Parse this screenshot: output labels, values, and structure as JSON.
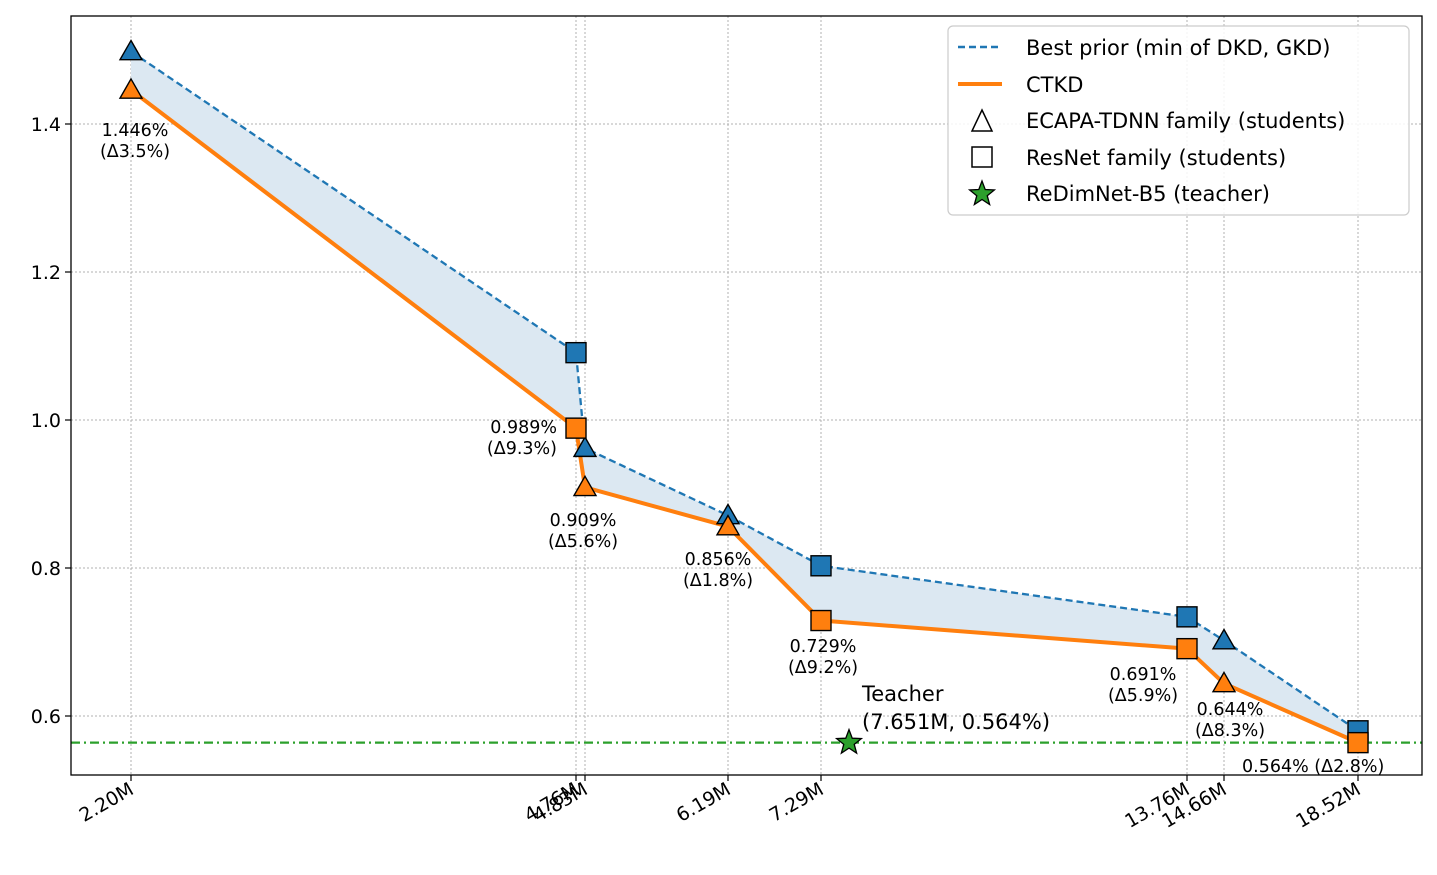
{
  "chart_data": {
    "type": "line",
    "title": "",
    "xlabel": "",
    "ylabel": "",
    "ylim": [
      0.52,
      1.55
    ],
    "yticks": [
      0.6,
      0.8,
      1.0,
      1.2,
      1.4
    ],
    "ytick_labels": [
      "0.6",
      "0.8",
      "1.0",
      "1.2",
      "1.4"
    ],
    "x_params_m": [
      2.2,
      4.76,
      4.83,
      6.19,
      7.29,
      13.76,
      14.66,
      18.52
    ],
    "xtick_labels": [
      "2.20M",
      "4.76M",
      "4.83M",
      "6.19M",
      "7.29M",
      "13.76M",
      "14.66M",
      "18.52M"
    ],
    "families": [
      "triangle",
      "square",
      "triangle",
      "triangle",
      "square",
      "square",
      "triangle",
      "square"
    ],
    "series": [
      {
        "name": "Best prior (min of DKD, GKD)",
        "color": "#1f77b4",
        "values": [
          1.498,
          1.091,
          0.962,
          0.871,
          0.803,
          0.734,
          0.702,
          0.58
        ]
      },
      {
        "name": "CTKD",
        "color": "#ff7f0e",
        "values": [
          1.446,
          0.989,
          0.909,
          0.856,
          0.729,
          0.691,
          0.644,
          0.564
        ]
      }
    ],
    "annotations": [
      {
        "line1": "1.446%",
        "line2": "(Δ3.5%)"
      },
      {
        "line1": "0.989%",
        "line2": "(Δ9.3%)"
      },
      {
        "line1": "0.909%",
        "line2": "(Δ5.6%)"
      },
      {
        "line1": "0.856%",
        "line2": "(Δ1.8%)"
      },
      {
        "line1": "0.729%",
        "line2": "(Δ9.2%)"
      },
      {
        "line1": "0.691%",
        "line2": "(Δ5.9%)"
      },
      {
        "line1": "0.644%",
        "line2": "(Δ8.3%)"
      },
      {
        "line1": "0.564% (Δ2.8%)",
        "line2": ""
      }
    ],
    "teacher": {
      "name": "ReDimNet-B5 (teacher)",
      "params": 7.651,
      "eer": 0.564,
      "label1": "Teacher",
      "label2": "(7.651M, 0.564%)",
      "color": "#2ca02c"
    },
    "legend": {
      "position": "top-right",
      "entries": [
        "Best prior (min of DKD, GKD)",
        "CTKD",
        "ECAPA-TDNN family (students)",
        "ResNet family (students)",
        "ReDimNet-B5 (teacher)"
      ]
    },
    "colors": {
      "prior": "#1f77b4",
      "ctkd": "#ff7f0e",
      "teacher": "#2ca02c",
      "fill": "#dce8f2"
    }
  }
}
